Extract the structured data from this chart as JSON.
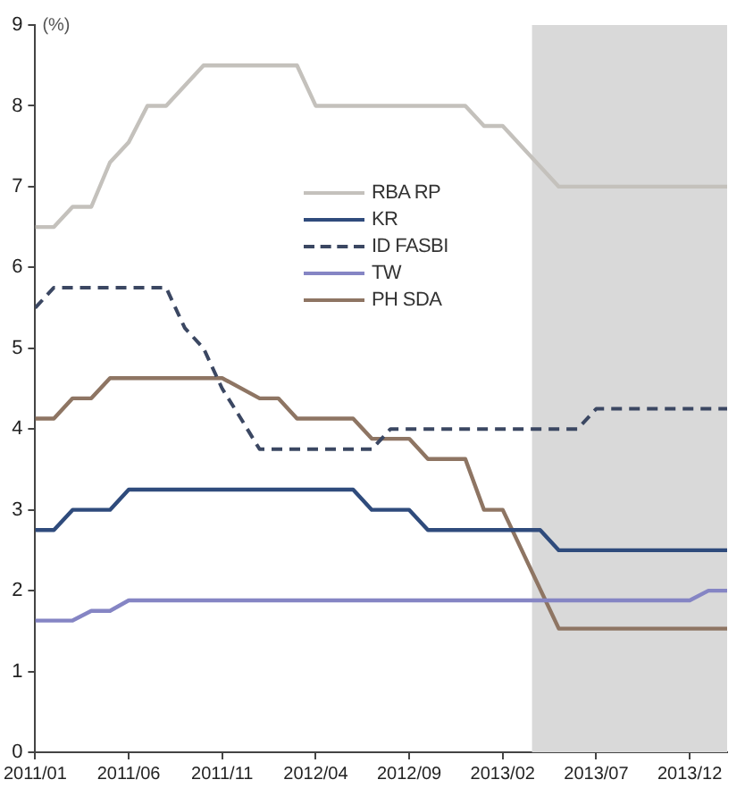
{
  "chart_data": {
    "type": "line",
    "ylabel": "(%)",
    "xlim": [
      "2011-01",
      "2014-02"
    ],
    "xticks": [
      {
        "value": "2011-01",
        "label": "2011/01"
      },
      {
        "value": "2011-06",
        "label": "2011/06"
      },
      {
        "value": "2011-11",
        "label": "2011/11"
      },
      {
        "value": "2012-04",
        "label": "2012/04"
      },
      {
        "value": "2012-09",
        "label": "2012/09"
      },
      {
        "value": "2013-02",
        "label": "2013/02"
      },
      {
        "value": "2013-07",
        "label": "2013/07"
      },
      {
        "value": "2013-12",
        "label": "2013/12"
      }
    ],
    "ylim": [
      0,
      9
    ],
    "yticks": [
      0,
      1,
      2,
      3,
      4,
      5,
      6,
      7,
      8,
      9
    ],
    "grid": false,
    "legend": "top",
    "marker": "none",
    "bands": [
      {
        "axis": "x",
        "from": "2013-03-18",
        "to": "2014-02",
        "color": "#d9d9d9"
      }
    ],
    "series": [
      {
        "name": "RBA RP",
        "color": "#c4c1bc",
        "line_style": "solid",
        "x": [
          "2011-01",
          "2011-02",
          "2011-03",
          "2011-04",
          "2011-05",
          "2011-06",
          "2011-07",
          "2011-08",
          "2011-10",
          "2012-03",
          "2012-04",
          "2012-12",
          "2013-01",
          "2013-02",
          "2013-05",
          "2014-02"
        ],
        "values": [
          6.5,
          6.5,
          6.75,
          6.75,
          7.3,
          7.55,
          8.0,
          8.0,
          8.5,
          8.5,
          8.0,
          8.0,
          7.75,
          7.75,
          7.0,
          7.0
        ]
      },
      {
        "name": "KR",
        "color": "#2f4b7c",
        "line_style": "solid",
        "x": [
          "2011-01",
          "2011-02",
          "2011-03",
          "2011-05",
          "2011-06",
          "2012-06",
          "2012-07",
          "2012-09",
          "2012-10",
          "2013-04",
          "2013-05",
          "2014-02"
        ],
        "values": [
          2.75,
          2.75,
          3.0,
          3.0,
          3.25,
          3.25,
          3.0,
          3.0,
          2.75,
          2.75,
          2.5,
          2.5
        ]
      },
      {
        "name": "ID FASBI",
        "color": "#3b4762",
        "line_style": "dashed",
        "x": [
          "2011-01",
          "2011-02",
          "2011-08",
          "2011-09",
          "2011-10",
          "2011-11",
          "2011-12",
          "2012-01",
          "2012-07",
          "2012-08",
          "2013-06",
          "2013-07",
          "2014-02"
        ],
        "values": [
          5.5,
          5.75,
          5.75,
          5.25,
          5.0,
          4.5,
          4.13,
          3.75,
          3.75,
          4.0,
          4.0,
          4.25,
          4.25
        ]
      },
      {
        "name": "TW",
        "color": "#8585c4",
        "line_style": "solid",
        "x": [
          "2011-01",
          "2011-03",
          "2011-04",
          "2011-05",
          "2011-06",
          "2013-12",
          "2014-01",
          "2014-02"
        ],
        "values": [
          1.63,
          1.63,
          1.75,
          1.75,
          1.88,
          1.88,
          2.0,
          2.0
        ]
      },
      {
        "name": "PH SDA",
        "color": "#8e7563",
        "line_style": "solid",
        "x": [
          "2011-01",
          "2011-02",
          "2011-03",
          "2011-04",
          "2011-05",
          "2011-11",
          "2012-01",
          "2012-02",
          "2012-03",
          "2012-06",
          "2012-07",
          "2012-09",
          "2012-10",
          "2012-12",
          "2013-01",
          "2013-02",
          "2013-05",
          "2014-02"
        ],
        "values": [
          4.13,
          4.13,
          4.38,
          4.38,
          4.63,
          4.63,
          4.38,
          4.38,
          4.13,
          4.13,
          3.88,
          3.88,
          3.63,
          3.63,
          3.0,
          3.0,
          1.53,
          1.53
        ]
      }
    ]
  }
}
